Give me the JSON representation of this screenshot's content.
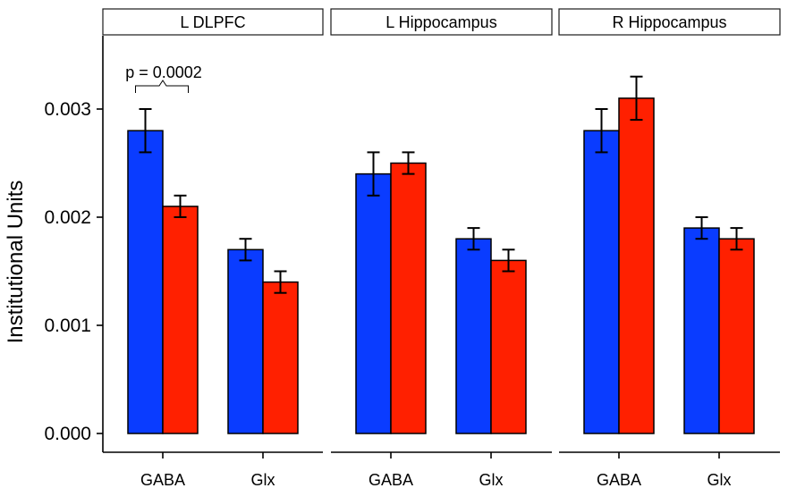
{
  "chart_data": {
    "type": "bar",
    "ylabel": "Institutional Units",
    "ylim": [
      0,
      0.0037
    ],
    "yticks": [
      {
        "value": 0,
        "label": "0.000"
      },
      {
        "value": 0.001,
        "label": "0.001"
      },
      {
        "value": 0.002,
        "label": "0.002"
      },
      {
        "value": 0.003,
        "label": "0.003"
      }
    ],
    "categories": [
      "GABA",
      "Glx"
    ],
    "colors": [
      "#0a3cff",
      "#ff2000"
    ],
    "facets": [
      {
        "title": "L DLPFC",
        "series": [
          {
            "values": [
              0.0028,
              0.0017
            ],
            "errors": [
              0.0002,
              0.0001
            ]
          },
          {
            "values": [
              0.0021,
              0.0014
            ],
            "errors": [
              0.0001,
              0.0001
            ]
          }
        ],
        "annotation": {
          "text": "p = 0.0002",
          "category": "GABA"
        }
      },
      {
        "title": "L Hippocampus",
        "series": [
          {
            "values": [
              0.0024,
              0.0018
            ],
            "errors": [
              0.0002,
              0.0001
            ]
          },
          {
            "values": [
              0.0025,
              0.0016
            ],
            "errors": [
              0.0001,
              0.0001
            ]
          }
        ]
      },
      {
        "title": "R Hippocampus",
        "series": [
          {
            "values": [
              0.0028,
              0.0019
            ],
            "errors": [
              0.0002,
              0.0001
            ]
          },
          {
            "values": [
              0.0031,
              0.0018
            ],
            "errors": [
              0.0002,
              0.0001
            ]
          }
        ]
      }
    ]
  }
}
